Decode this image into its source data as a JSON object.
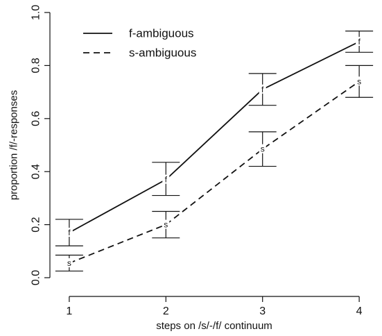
{
  "chart_data": {
    "type": "line",
    "title": "",
    "xlabel": "steps on /s/-/f/ continuum",
    "ylabel": "proportion /f/-responses",
    "x": [
      1,
      2,
      3,
      4
    ],
    "xticks": [
      "1",
      "2",
      "3",
      "4"
    ],
    "yticks": [
      "0.0",
      "0.2",
      "0.4",
      "0.6",
      "0.8",
      "1.0"
    ],
    "xlim": [
      0.8,
      4.2
    ],
    "ylim": [
      0,
      1.0
    ],
    "grid": false,
    "legend_placement": "top-left",
    "series": [
      {
        "name": "f-ambiguous",
        "marker": "f",
        "dash": "solid",
        "values": [
          0.17,
          0.37,
          0.71,
          0.89
        ],
        "err_low": [
          0.12,
          0.31,
          0.65,
          0.85
        ],
        "err_high": [
          0.22,
          0.435,
          0.77,
          0.93
        ]
      },
      {
        "name": "s-ambiguous",
        "marker": "s",
        "dash": "dashed",
        "values": [
          0.055,
          0.2,
          0.485,
          0.74
        ],
        "err_low": [
          0.025,
          0.15,
          0.42,
          0.68
        ],
        "err_high": [
          0.085,
          0.25,
          0.55,
          0.8
        ]
      }
    ]
  }
}
